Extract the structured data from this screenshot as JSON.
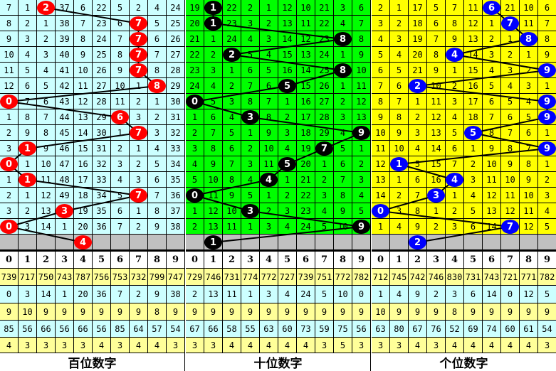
{
  "colors": {
    "panel_bg": [
      "#ccffff",
      "#00ff00",
      "#ffff00"
    ],
    "ball": [
      "#ff0000",
      "#000000",
      "#0000ff"
    ],
    "pending_row": "#c0c0c0",
    "stat_yellow": "#ffff99",
    "stat_cyan": "#ccffff"
  },
  "header_digits": [
    "0",
    "1",
    "2",
    "3",
    "4",
    "5",
    "6",
    "7",
    "8",
    "9"
  ],
  "panels": [
    {
      "title": "百位数字",
      "draws": [
        2,
        7,
        7,
        7,
        7,
        8,
        0,
        6,
        7,
        1,
        0,
        1,
        7,
        3,
        0,
        4
      ],
      "rows": [
        [
          7,
          1,
          2,
          37,
          6,
          22,
          5,
          2,
          4,
          24
        ],
        [
          8,
          2,
          1,
          38,
          7,
          23,
          6,
          7,
          5,
          25
        ],
        [
          9,
          3,
          2,
          39,
          8,
          24,
          7,
          7,
          6,
          26
        ],
        [
          10,
          4,
          3,
          40,
          9,
          25,
          8,
          7,
          7,
          27
        ],
        [
          11,
          5,
          4,
          41,
          10,
          26,
          9,
          7,
          8,
          28
        ],
        [
          12,
          6,
          5,
          42,
          11,
          27,
          10,
          1,
          8,
          29
        ],
        [
          0,
          7,
          6,
          43,
          12,
          28,
          11,
          2,
          1,
          30
        ],
        [
          1,
          8,
          7,
          44,
          13,
          29,
          6,
          3,
          2,
          31
        ],
        [
          2,
          9,
          8,
          45,
          14,
          30,
          1,
          7,
          3,
          32
        ],
        [
          3,
          1,
          9,
          46,
          15,
          31,
          2,
          1,
          4,
          33
        ],
        [
          0,
          1,
          10,
          47,
          16,
          32,
          3,
          2,
          5,
          34
        ],
        [
          1,
          1,
          11,
          48,
          17,
          33,
          4,
          3,
          6,
          35
        ],
        [
          2,
          1,
          12,
          49,
          18,
          34,
          5,
          7,
          7,
          36
        ],
        [
          3,
          2,
          13,
          3,
          19,
          35,
          6,
          1,
          8,
          37
        ],
        [
          0,
          3,
          14,
          1,
          20,
          36,
          7,
          2,
          9,
          38
        ]
      ],
      "stats": [
        [
          739,
          717,
          750,
          743,
          787,
          756,
          753,
          732,
          799,
          747
        ],
        [
          0,
          3,
          14,
          1,
          20,
          36,
          7,
          2,
          9,
          38
        ],
        [
          9,
          10,
          9,
          9,
          9,
          9,
          9,
          9,
          8,
          9
        ],
        [
          85,
          56,
          66,
          56,
          66,
          56,
          85,
          64,
          57,
          54
        ],
        [
          4,
          3,
          3,
          3,
          3,
          4,
          3,
          4,
          4,
          3
        ]
      ]
    },
    {
      "title": "十位数字",
      "draws": [
        1,
        1,
        8,
        2,
        8,
        5,
        0,
        3,
        9,
        7,
        5,
        4,
        0,
        3,
        9,
        1
      ],
      "rows": [
        [
          19,
          1,
          22,
          2,
          1,
          12,
          10,
          21,
          3,
          6
        ],
        [
          20,
          1,
          23,
          3,
          2,
          13,
          11,
          22,
          4,
          7
        ],
        [
          21,
          1,
          24,
          4,
          3,
          14,
          12,
          23,
          8,
          8
        ],
        [
          22,
          2,
          2,
          5,
          4,
          15,
          13,
          24,
          1,
          9
        ],
        [
          23,
          3,
          1,
          6,
          5,
          16,
          14,
          25,
          8,
          10
        ],
        [
          24,
          4,
          2,
          7,
          6,
          5,
          15,
          26,
          1,
          11
        ],
        [
          0,
          5,
          3,
          8,
          7,
          1,
          16,
          27,
          2,
          12
        ],
        [
          1,
          6,
          4,
          3,
          8,
          2,
          17,
          28,
          3,
          13
        ],
        [
          2,
          7,
          5,
          1,
          9,
          3,
          18,
          29,
          4,
          9
        ],
        [
          3,
          8,
          6,
          2,
          10,
          4,
          19,
          7,
          5,
          1
        ],
        [
          4,
          9,
          7,
          3,
          11,
          5,
          20,
          1,
          6,
          2
        ],
        [
          5,
          10,
          8,
          4,
          4,
          1,
          21,
          2,
          7,
          3
        ],
        [
          0,
          11,
          9,
          5,
          1,
          2,
          22,
          3,
          8,
          4
        ],
        [
          1,
          12,
          10,
          3,
          2,
          3,
          23,
          4,
          9,
          5
        ],
        [
          2,
          13,
          11,
          1,
          3,
          4,
          24,
          5,
          10,
          9
        ]
      ],
      "stats": [
        [
          729,
          746,
          731,
          774,
          772,
          727,
          739,
          751,
          772,
          782
        ],
        [
          2,
          13,
          11,
          1,
          3,
          4,
          24,
          5,
          10,
          0
        ],
        [
          9,
          9,
          9,
          9,
          9,
          9,
          9,
          9,
          9,
          9
        ],
        [
          67,
          66,
          58,
          55,
          63,
          60,
          73,
          59,
          75,
          56
        ],
        [
          3,
          3,
          4,
          4,
          4,
          4,
          4,
          3,
          5,
          3
        ]
      ]
    },
    {
      "title": "个位数字",
      "draws": [
        6,
        7,
        8,
        4,
        9,
        2,
        9,
        9,
        5,
        9,
        1,
        4,
        3,
        0,
        7,
        2
      ],
      "rows": [
        [
          2,
          1,
          17,
          5,
          7,
          11,
          6,
          21,
          10,
          6
        ],
        [
          3,
          2,
          18,
          6,
          8,
          12,
          1,
          7,
          11,
          7
        ],
        [
          4,
          3,
          19,
          7,
          9,
          13,
          2,
          1,
          8,
          8
        ],
        [
          5,
          4,
          20,
          8,
          4,
          14,
          3,
          2,
          1,
          9
        ],
        [
          6,
          5,
          21,
          9,
          1,
          15,
          4,
          3,
          2,
          9
        ],
        [
          7,
          6,
          2,
          10,
          2,
          16,
          5,
          4,
          3,
          1
        ],
        [
          8,
          7,
          1,
          11,
          3,
          17,
          6,
          5,
          4,
          9
        ],
        [
          9,
          8,
          2,
          12,
          4,
          18,
          7,
          6,
          5,
          9
        ],
        [
          10,
          9,
          3,
          13,
          5,
          5,
          8,
          7,
          6,
          1
        ],
        [
          11,
          10,
          4,
          14,
          6,
          1,
          9,
          8,
          7,
          9
        ],
        [
          12,
          1,
          5,
          15,
          7,
          2,
          10,
          9,
          8,
          1
        ],
        [
          13,
          1,
          6,
          16,
          4,
          3,
          11,
          10,
          9,
          2
        ],
        [
          14,
          2,
          7,
          3,
          1,
          4,
          12,
          11,
          10,
          3
        ],
        [
          0,
          3,
          8,
          1,
          2,
          5,
          13,
          12,
          11,
          4
        ],
        [
          1,
          4,
          9,
          2,
          3,
          6,
          14,
          7,
          12,
          5
        ]
      ],
      "stats": [
        [
          712,
          745,
          742,
          746,
          830,
          731,
          743,
          721,
          771,
          782
        ],
        [
          1,
          4,
          9,
          2,
          3,
          6,
          14,
          0,
          12,
          5
        ],
        [
          10,
          9,
          9,
          9,
          8,
          9,
          9,
          9,
          9,
          9
        ],
        [
          63,
          80,
          67,
          76,
          52,
          69,
          74,
          60,
          61,
          54
        ],
        [
          3,
          3,
          4,
          3,
          4,
          4,
          4,
          4,
          4,
          3
        ]
      ]
    }
  ]
}
